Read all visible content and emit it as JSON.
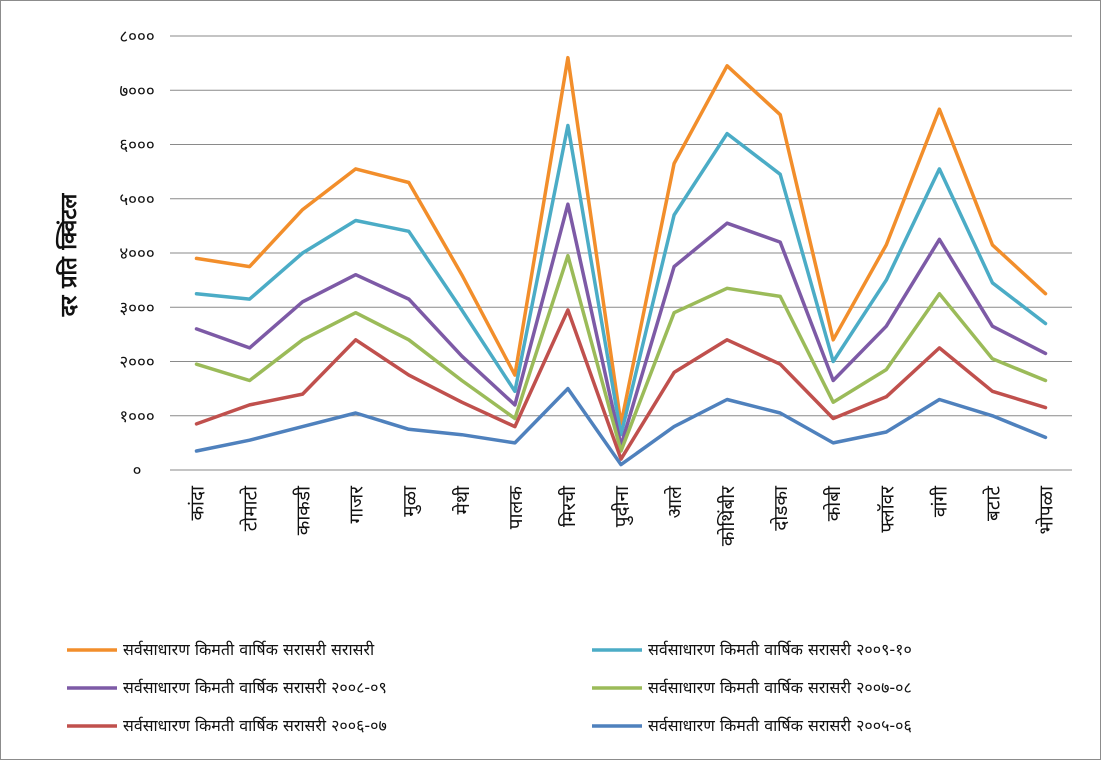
{
  "chart_data": {
    "type": "line",
    "title": "",
    "xlabel": "",
    "ylabel": "दर प्रति क्विंटल",
    "ylim": [
      0,
      8000
    ],
    "y_ticks": [
      0,
      1000,
      2000,
      3000,
      4000,
      5000,
      6000,
      7000,
      8000
    ],
    "y_tick_labels": [
      "०",
      "१०००",
      "२०००",
      "३०००",
      "४०००",
      "५०००",
      "६०००",
      "७०००",
      "८०००"
    ],
    "grid": true,
    "legend_position": "bottom",
    "categories": [
      "कांदा",
      "टोमाटो",
      "काकडी",
      "गाजर",
      "मुळा",
      "मेथी",
      "पालक",
      "मिरची",
      "पुदीना",
      "आले",
      "कोथिंबीर",
      "दोडका",
      "कोबी",
      "फ्लॉवर",
      "वांगी",
      "बटाटे",
      "भोपळा"
    ],
    "series": [
      {
        "name": "सर्वसाधारण किमती वार्षिक सरासरी सरासरी",
        "color": "#f28e2b",
        "values": [
          3900,
          3750,
          4800,
          5550,
          5300,
          3600,
          1750,
          7600,
          850,
          5650,
          7450,
          6550,
          2400,
          4150,
          6650,
          4150,
          3250
        ]
      },
      {
        "name": "सर्वसाधारण किमती वार्षिक सरासरी २००९-१०",
        "color": "#4bacc6",
        "values": [
          3250,
          3150,
          4000,
          4600,
          4400,
          2950,
          1450,
          6350,
          650,
          4700,
          6200,
          5450,
          2000,
          3500,
          5550,
          3450,
          2700
        ]
      },
      {
        "name": "सर्वसाधारण किमती वार्षिक सरासरी २००८-०९",
        "color": "#7d5aa6",
        "values": [
          2600,
          2250,
          3100,
          3600,
          3150,
          2100,
          1200,
          4900,
          450,
          3750,
          4550,
          4200,
          1650,
          2650,
          4250,
          2650,
          2150
        ]
      },
      {
        "name": "सर्वसाधारण किमती वार्षिक सरासरी २००७-०८",
        "color": "#9bbb59",
        "values": [
          1950,
          1650,
          2400,
          2900,
          2400,
          1650,
          950,
          3950,
          350,
          2900,
          3350,
          3200,
          1250,
          1850,
          3250,
          2050,
          1650
        ]
      },
      {
        "name": "सर्वसाधारण किमती वार्षिक सरासरी २००६-०७",
        "color": "#c0504d",
        "values": [
          850,
          1200,
          1400,
          2400,
          1750,
          1250,
          800,
          2950,
          200,
          1800,
          2400,
          1950,
          950,
          1350,
          2250,
          1450,
          1150
        ]
      },
      {
        "name": "सर्वसाधारण किमती वार्षिक सरासरी २००५-०६",
        "color": "#4f81bd",
        "values": [
          350,
          550,
          800,
          1050,
          750,
          650,
          500,
          1500,
          100,
          800,
          1300,
          1050,
          500,
          700,
          1300,
          1000,
          600
        ]
      }
    ]
  }
}
